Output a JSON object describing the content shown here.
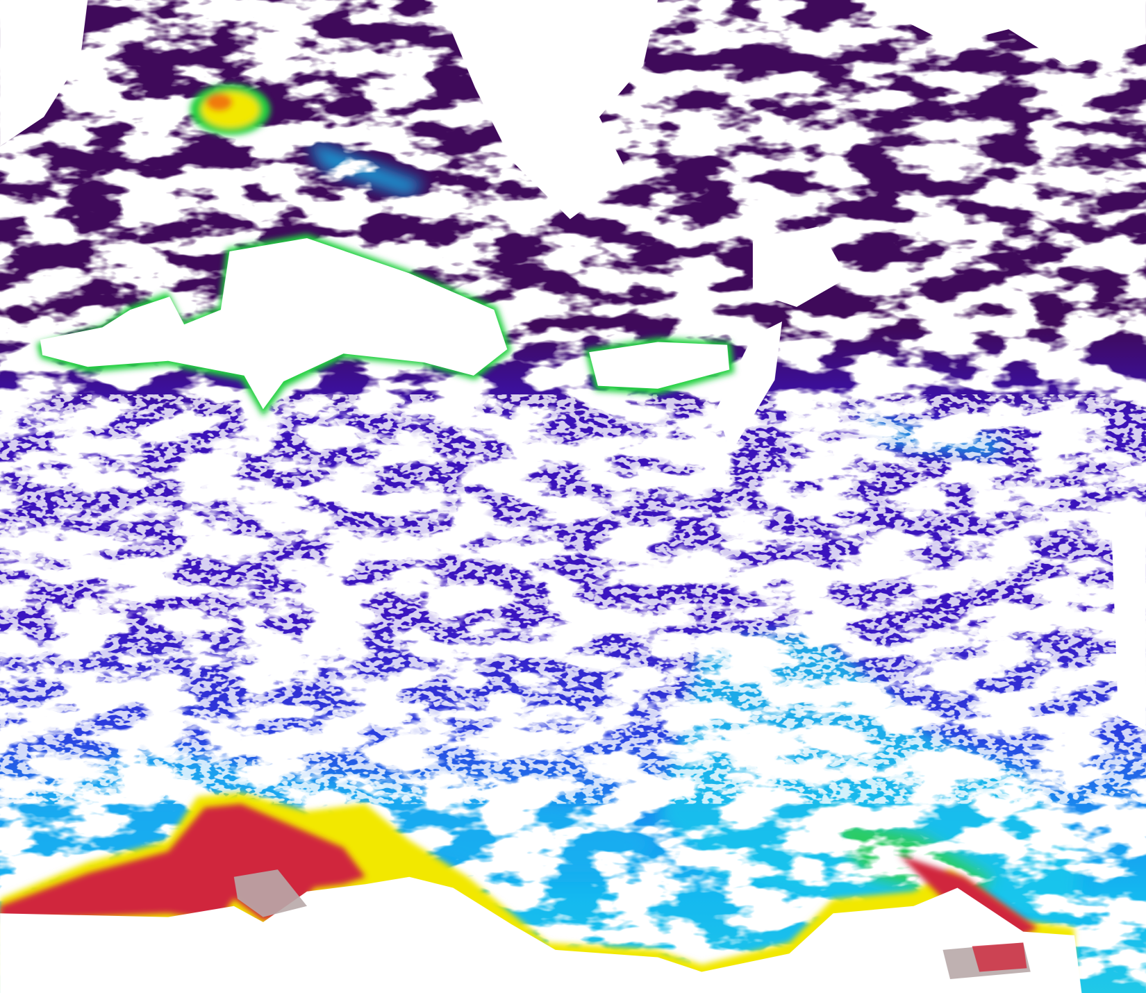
{
  "map": {
    "colormap": [
      "#3f0a5a",
      "#3a10c8",
      "#2a5cf0",
      "#12b8f0",
      "#19d6e0",
      "#21d040",
      "#f2e800",
      "#f07a10",
      "#d0283c",
      "#b8a8a8"
    ],
    "colors": {
      "cloud_and_land_mask": "#ffffff",
      "deep_ocean_low": "#3f0a5a",
      "open_ocean": "#3a10c8",
      "shelf_mid": "#12b8f0",
      "coastal_high": "#d0283c",
      "no_data_grey": "#b8a8a8"
    }
  }
}
